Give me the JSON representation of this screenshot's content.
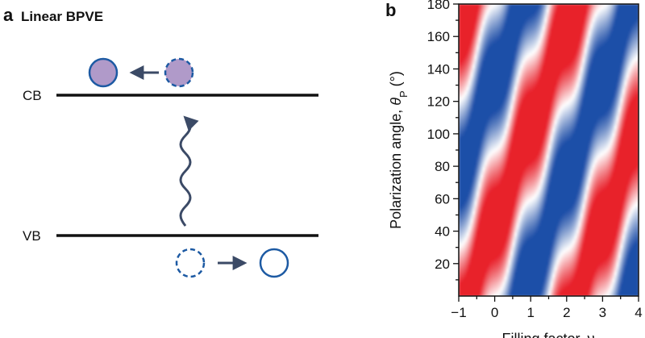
{
  "panel_a": {
    "letter": "a",
    "title": "Linear BPVE",
    "cb_label": "CB",
    "vb_label": "VB",
    "colors": {
      "band_line": "#111111",
      "particle_outline": "#1d5aa3",
      "particle_fill": "#b09ac9",
      "arrow": "#3b4a66"
    }
  },
  "panel_b": {
    "letter": "b",
    "colors": {
      "positive": "#e8202a",
      "negative": "#1f4fa8",
      "zero": "#ffffff"
    }
  },
  "chart_data": {
    "type": "heatmap",
    "xlabel": "Filling factor, ν",
    "ylabel": "Polarization angle, θP (°)",
    "ylabel_main": "Polarization angle, ",
    "ylabel_symbol": "θ",
    "ylabel_subscript": "P",
    "ylabel_unit": " (°)",
    "xlim": [
      -1,
      4
    ],
    "ylim": [
      0,
      180
    ],
    "xticks": [
      -1,
      0,
      1,
      2,
      3,
      4
    ],
    "yticks": [
      20,
      40,
      60,
      80,
      100,
      120,
      140,
      160,
      180
    ],
    "colormap": "blue-white-red (diverging)",
    "pattern": "signal ≈ sin(2θP − 2π·0.33·ν); red positive, blue negative"
  }
}
